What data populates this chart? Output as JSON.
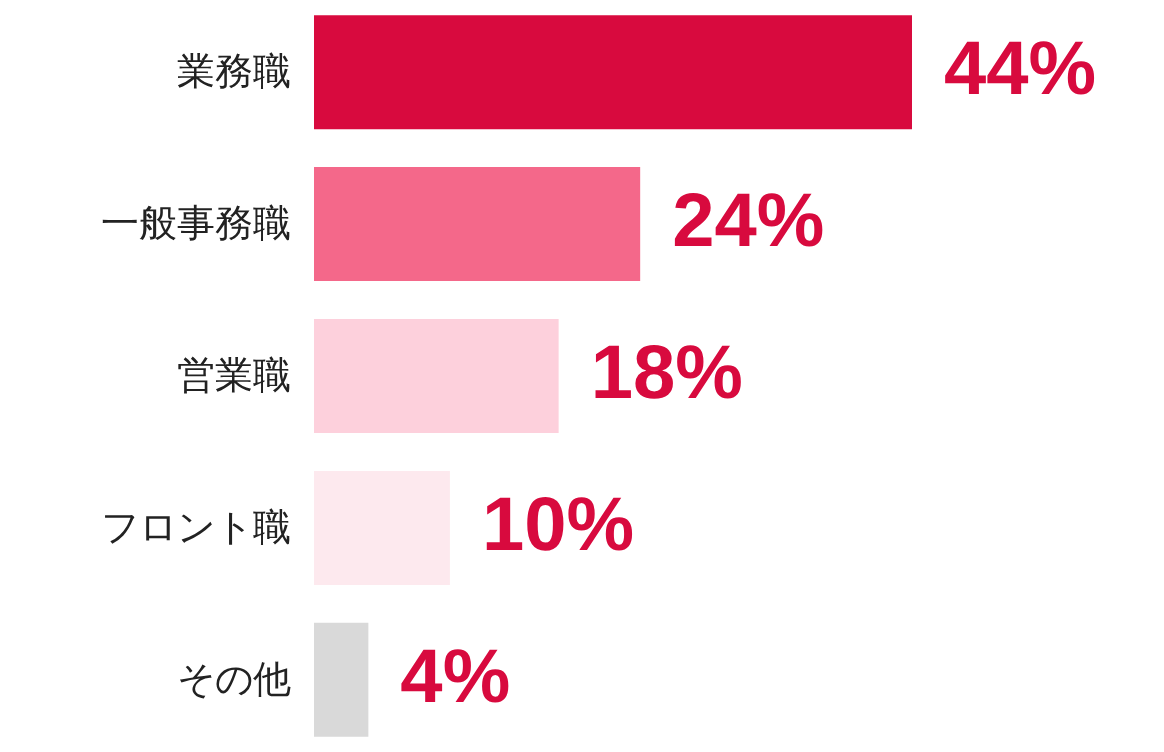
{
  "chart_data": {
    "type": "bar",
    "orientation": "horizontal",
    "categories": [
      "業務職",
      "一般事務職",
      "営業職",
      "フロント職",
      "その他"
    ],
    "values": [
      44,
      24,
      18,
      10,
      4
    ],
    "colors": [
      "#d80a3e",
      "#f4688a",
      "#fdd0dc",
      "#fde9ee",
      "#d9d9d9"
    ],
    "value_labels": [
      "44%",
      "24%",
      "18%",
      "10%",
      "4%"
    ]
  }
}
